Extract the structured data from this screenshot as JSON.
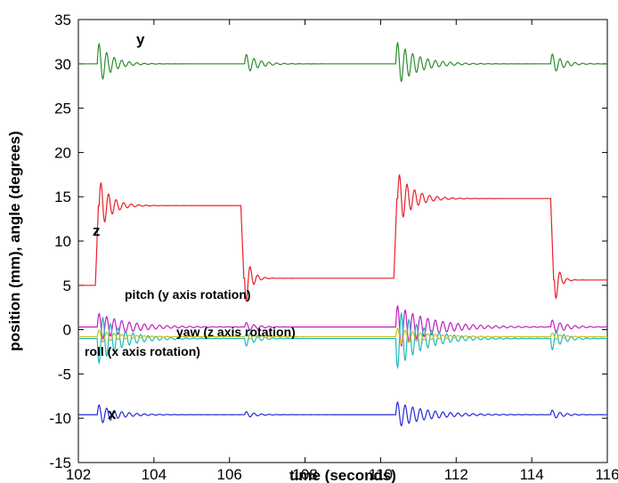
{
  "chart_data": {
    "type": "line",
    "xlabel": "time (seconds)",
    "ylabel": "position (mm), angle (degrees)",
    "xlim": [
      102,
      116
    ],
    "ylim": [
      -15,
      35
    ],
    "xticks": [
      102,
      104,
      106,
      108,
      110,
      112,
      114,
      116
    ],
    "yticks": [
      -15,
      -10,
      -5,
      0,
      5,
      10,
      15,
      20,
      25,
      30,
      35
    ],
    "grid": false,
    "legend": "none",
    "annotations": [
      {
        "text": "y",
        "x": 102.0,
        "y": 32.0
      },
      {
        "text": "z",
        "x": 102.0,
        "y": 10.0
      },
      {
        "text": "pitch (y axis rotation)",
        "x": 102.0,
        "y": 2.0
      },
      {
        "text": "yaw (z axis rotation)",
        "x": 102.0,
        "y": -2.0
      },
      {
        "text": "roll (x axis rotation)",
        "x": 102.0,
        "y": -4.0
      },
      {
        "text": "x",
        "x": 102.0,
        "y": -12.0
      }
    ],
    "series": [
      {
        "color": "#2e8b2e",
        "baseline": 30.0,
        "events": [
          {
            "t": 102.5,
            "amp": 2.6,
            "tau": 0.35,
            "period": 0.2
          },
          {
            "t": 106.4,
            "amp": 1.2,
            "tau": 0.35,
            "period": 0.2
          },
          {
            "t": 110.4,
            "amp": 2.6,
            "tau": 0.55,
            "period": 0.2
          },
          {
            "t": 114.5,
            "amp": 1.3,
            "tau": 0.3,
            "period": 0.2
          }
        ],
        "steps": []
      },
      {
        "color": "#e8202a",
        "baseline": 5.0,
        "steps": [
          {
            "t": 102.45,
            "value": 14.0
          },
          {
            "t": 106.3,
            "value": 5.8
          },
          {
            "t": 110.35,
            "value": 14.8
          },
          {
            "t": 114.5,
            "value": 5.6
          }
        ],
        "events": [
          {
            "t": 102.55,
            "amp": 3.0,
            "tau": 0.3,
            "period": 0.2
          },
          {
            "t": 106.4,
            "amp": -3.5,
            "tau": 0.15,
            "period": 0.2
          },
          {
            "t": 110.45,
            "amp": 3.0,
            "tau": 0.4,
            "period": 0.2
          },
          {
            "t": 114.6,
            "amp": -3.0,
            "tau": 0.12,
            "period": 0.2
          }
        ]
      },
      {
        "color": "#c020c0",
        "baseline": 0.3,
        "steps": [],
        "events": [
          {
            "t": 102.5,
            "amp": 1.6,
            "tau": 0.8,
            "period": 0.2
          },
          {
            "t": 106.4,
            "amp": 0.6,
            "tau": 0.3,
            "period": 0.2
          },
          {
            "t": 110.4,
            "amp": 2.5,
            "tau": 0.9,
            "period": 0.2
          },
          {
            "t": 114.5,
            "amp": 0.9,
            "tau": 0.4,
            "period": 0.2
          }
        ]
      },
      {
        "color": "#20b8b8",
        "baseline": -1.0,
        "steps": [],
        "events": [
          {
            "t": 102.5,
            "amp": -3.0,
            "tau": 0.6,
            "period": 0.2
          },
          {
            "t": 106.4,
            "amp": -1.0,
            "tau": 0.3,
            "period": 0.2
          },
          {
            "t": 110.4,
            "amp": -3.5,
            "tau": 0.7,
            "period": 0.2
          },
          {
            "t": 114.5,
            "amp": -1.5,
            "tau": 0.3,
            "period": 0.2
          }
        ]
      },
      {
        "color": "#c8c020",
        "baseline": -0.8,
        "steps": [],
        "events": [
          {
            "t": 102.5,
            "amp": 0.8,
            "tau": 0.6,
            "period": 0.2
          },
          {
            "t": 106.4,
            "amp": 0.4,
            "tau": 0.3,
            "period": 0.2
          },
          {
            "t": 110.4,
            "amp": 1.0,
            "tau": 0.8,
            "period": 0.2
          },
          {
            "t": 114.5,
            "amp": 0.5,
            "tau": 0.3,
            "period": 0.2
          }
        ]
      },
      {
        "color": "#2828d8",
        "baseline": -9.6,
        "steps": [],
        "events": [
          {
            "t": 102.5,
            "amp": 1.2,
            "tau": 0.5,
            "period": 0.2
          },
          {
            "t": 106.4,
            "amp": 0.4,
            "tau": 0.3,
            "period": 0.2
          },
          {
            "t": 110.4,
            "amp": 1.5,
            "tau": 0.8,
            "period": 0.2
          },
          {
            "t": 114.5,
            "amp": 0.6,
            "tau": 0.3,
            "period": 0.2
          }
        ]
      }
    ]
  }
}
